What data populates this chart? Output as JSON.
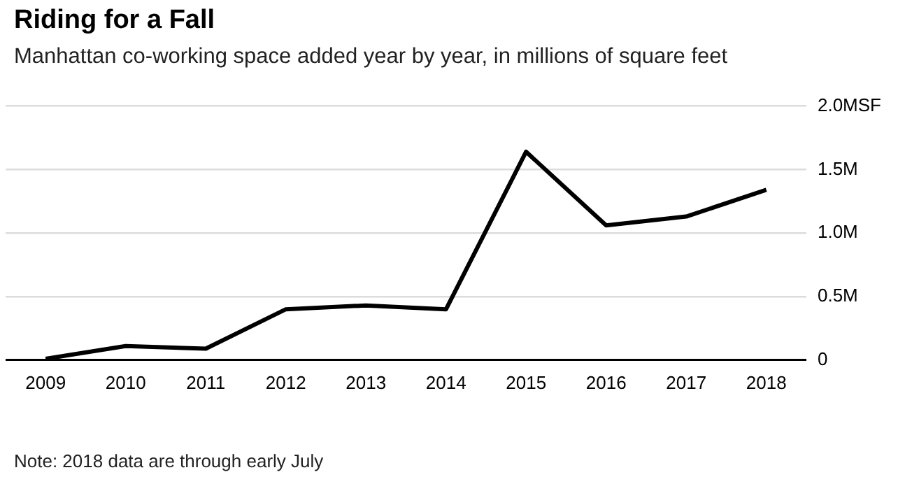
{
  "chart_data": {
    "type": "line",
    "title": "Riding for a Fall",
    "subtitle": "Manhattan co-working space added year by year, in millions of square feet",
    "categories": [
      "2009",
      "2010",
      "2011",
      "2012",
      "2013",
      "2014",
      "2015",
      "2016",
      "2017",
      "2018"
    ],
    "series": [
      {
        "color": "#000000",
        "values": [
          0.01,
          0.11,
          0.09,
          0.4,
          0.43,
          0.4,
          1.64,
          1.06,
          1.13,
          1.34
        ]
      }
    ],
    "ylim": [
      0,
      2
    ],
    "yticks": [
      {
        "value": 0,
        "label": "0"
      },
      {
        "value": 0.5,
        "label": "0.5M"
      },
      {
        "value": 1,
        "label": "1.0M"
      },
      {
        "value": 1.5,
        "label": "1.5M"
      },
      {
        "value": 2,
        "label": "2.0MSF"
      }
    ],
    "grid": "y",
    "legend": false,
    "marker": "none",
    "line_style": "solid",
    "annotations": [
      "Note: 2018 data are through early July"
    ]
  }
}
